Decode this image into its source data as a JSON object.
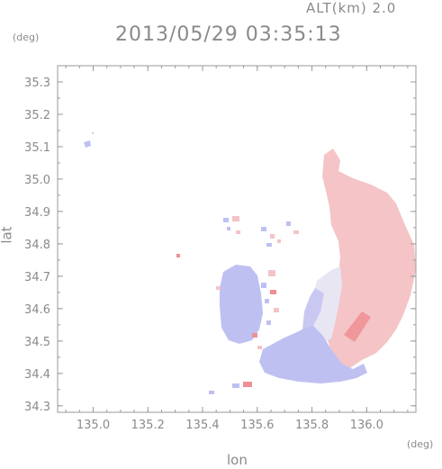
{
  "header": {
    "altitude_label": "ALT(km) 2.0",
    "timestamp": "2013/05/29 03:35:13"
  },
  "axes": {
    "y_unit": "(deg)",
    "x_unit": "(deg)",
    "y_title": "lat",
    "x_title": "lon"
  },
  "chart_data": {
    "type": "heatmap",
    "xlabel": "lon",
    "ylabel": "lat",
    "xlim": [
      134.87,
      136.18
    ],
    "ylim": [
      34.28,
      35.35
    ],
    "x_ticks": [
      "135.0",
      "135.2",
      "135.4",
      "135.6",
      "135.8",
      "136.0"
    ],
    "y_ticks": [
      "34.3",
      "34.4",
      "34.5",
      "34.6",
      "34.7",
      "34.8",
      "34.9",
      "35.0",
      "35.1",
      "35.2",
      "35.3"
    ],
    "grid": false,
    "colors": {
      "positive": "#f4c4c6",
      "negative": "#bfc0f2",
      "strong_positive": "#ef8f94",
      "neutral": "#eeeef6"
    }
  }
}
